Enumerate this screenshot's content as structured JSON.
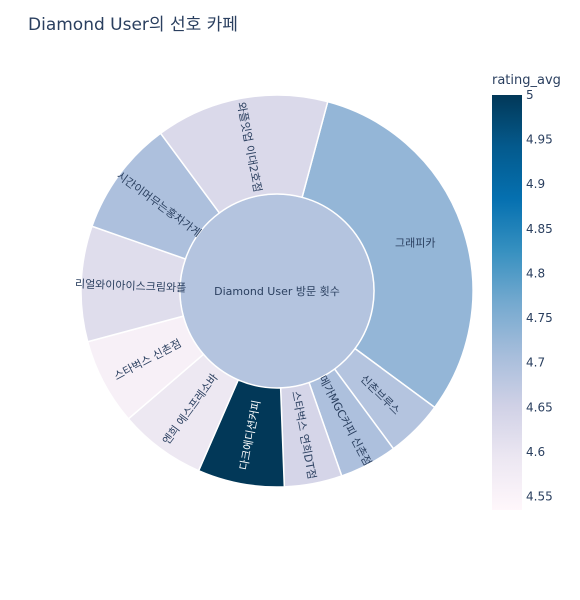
{
  "chart_data": {
    "type": "sunburst",
    "title": "Diamond User의 선호 카페",
    "root": {
      "label": "Diamond User 방문 횟수",
      "rating_avg": 4.69
    },
    "slices": [
      {
        "label": "그래피카",
        "value": 13,
        "rating_avg": 4.73
      },
      {
        "label": "신촌브루스",
        "value": 2,
        "rating_avg": 4.69
      },
      {
        "label": "메가MGC커피 신촌점",
        "value": 2,
        "rating_avg": 4.7
      },
      {
        "label": "스타벅스 연희DT점",
        "value": 2,
        "rating_avg": 4.64
      },
      {
        "label": "다크에디션커피",
        "value": 3,
        "rating_avg": 5.0
      },
      {
        "label": "엔희 에스프레소바",
        "value": 3,
        "rating_avg": 4.59
      },
      {
        "label": "스타벅스 신촌점",
        "value": 3,
        "rating_avg": 4.56
      },
      {
        "label": "리얼와이아이스크림와플",
        "value": 4,
        "rating_avg": 4.62
      },
      {
        "label": "시간이머무는홍차가게",
        "value": 4,
        "rating_avg": 4.7
      },
      {
        "label": "와플잇업 이대2호점",
        "value": 6,
        "rating_avg": 4.63
      }
    ],
    "colorbar": {
      "title": "rating_avg",
      "min": 4.535,
      "max": 5.0,
      "ticks": [
        "5",
        "4.95",
        "4.9",
        "4.85",
        "4.8",
        "4.75",
        "4.7",
        "4.65",
        "4.6",
        "4.55"
      ],
      "colorscale": [
        "#fff7fb",
        "#ece7f2",
        "#d0d1e6",
        "#a6bddb",
        "#74a9cf",
        "#3690c0",
        "#0570b0",
        "#045a8d",
        "#023858"
      ]
    }
  }
}
